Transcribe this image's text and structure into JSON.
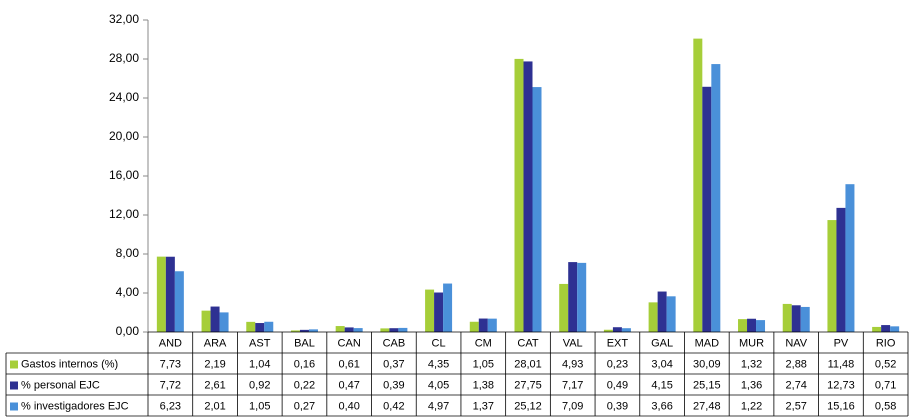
{
  "chart_data": {
    "type": "bar",
    "categories": [
      "AND",
      "ARA",
      "AST",
      "BAL",
      "CAN",
      "CAB",
      "CL",
      "CM",
      "CAT",
      "VAL",
      "EXT",
      "GAL",
      "MAD",
      "MUR",
      "NAV",
      "PV",
      "RIO"
    ],
    "series": [
      {
        "name": "Gastos internos (%)",
        "color": "#a6ce39",
        "values": [
          7.73,
          2.19,
          1.04,
          0.16,
          0.61,
          0.37,
          4.35,
          1.05,
          28.01,
          4.93,
          0.23,
          3.04,
          30.09,
          1.32,
          2.88,
          11.48,
          0.52
        ],
        "value_labels": [
          "7,73",
          "2,19",
          "1,04",
          "0,16",
          "0,61",
          "0,37",
          "4,35",
          "1,05",
          "28,01",
          "4,93",
          "0,23",
          "3,04",
          "30,09",
          "1,32",
          "2,88",
          "11,48",
          "0,52"
        ]
      },
      {
        "name": "% personal EJC",
        "color": "#2e3192",
        "values": [
          7.72,
          2.61,
          0.92,
          0.22,
          0.47,
          0.39,
          4.05,
          1.38,
          27.75,
          7.17,
          0.49,
          4.15,
          25.15,
          1.36,
          2.74,
          12.73,
          0.71
        ],
        "value_labels": [
          "7,72",
          "2,61",
          "0,92",
          "0,22",
          "0,47",
          "0,39",
          "4,05",
          "1,38",
          "27,75",
          "7,17",
          "0,49",
          "4,15",
          "25,15",
          "1,36",
          "2,74",
          "12,73",
          "0,71"
        ]
      },
      {
        "name": "% investigadores EJC",
        "color": "#4a90d9",
        "values": [
          6.23,
          2.01,
          1.05,
          0.27,
          0.4,
          0.42,
          4.97,
          1.37,
          25.12,
          7.09,
          0.39,
          3.66,
          27.48,
          1.22,
          2.57,
          15.16,
          0.58
        ],
        "value_labels": [
          "6,23",
          "2,01",
          "1,05",
          "0,27",
          "0,40",
          "0,42",
          "4,97",
          "1,37",
          "25,12",
          "7,09",
          "0,39",
          "3,66",
          "27,48",
          "1,22",
          "2,57",
          "15,16",
          "0,58"
        ]
      }
    ],
    "ylim": [
      0,
      32
    ],
    "yticks": [
      {
        "value": 0,
        "label": "0,00"
      },
      {
        "value": 4,
        "label": "4,00"
      },
      {
        "value": 8,
        "label": "8,00"
      },
      {
        "value": 12,
        "label": "12,00"
      },
      {
        "value": 16,
        "label": "16,00"
      },
      {
        "value": 20,
        "label": "20,00"
      },
      {
        "value": 24,
        "label": "24,00"
      },
      {
        "value": 28,
        "label": "28,00"
      },
      {
        "value": 32,
        "label": "32,00"
      }
    ],
    "grid": false
  }
}
